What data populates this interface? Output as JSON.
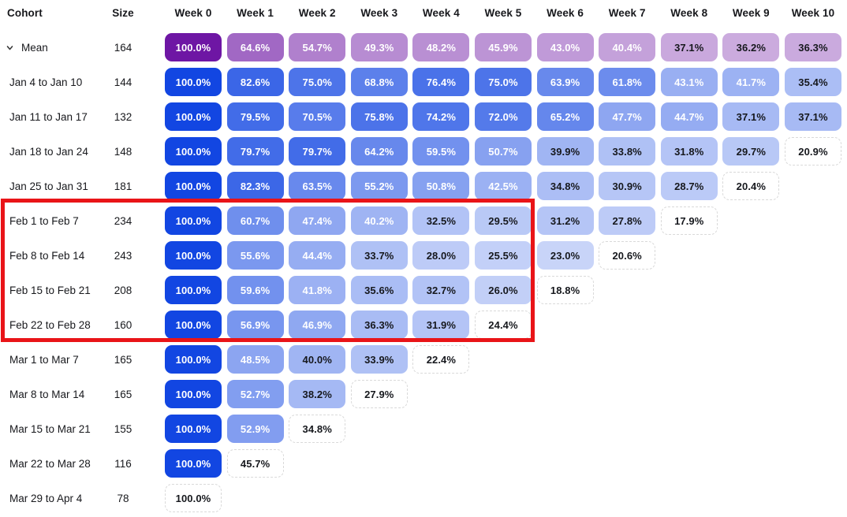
{
  "header": {
    "cohort": "Cohort",
    "size": "Size",
    "weeks": [
      "Week 0",
      "Week 1",
      "Week 2",
      "Week 3",
      "Week 4",
      "Week 5",
      "Week 6",
      "Week 7",
      "Week 8",
      "Week 9",
      "Week 10"
    ]
  },
  "colors": {
    "cohort_base": "#1246e2",
    "mean_base": "#6e16a4",
    "incomplete_border": "#d9d9d9",
    "dark_text": "#16181d",
    "light_text": "#ffffff",
    "highlight_red": "#e91418",
    "white_text_threshold": 40
  },
  "chart_data": {
    "type": "heatmap",
    "x_categories": [
      "Week 0",
      "Week 1",
      "Week 2",
      "Week 3",
      "Week 4",
      "Week 5",
      "Week 6",
      "Week 7",
      "Week 8",
      "Week 9",
      "Week 10"
    ],
    "value_format": "percent_1dp",
    "legend": "none",
    "rows": [
      {
        "cohort": "Mean",
        "size": "164",
        "series": "mean",
        "expandable": true,
        "incomplete_last": false,
        "values": [
          100.0,
          64.6,
          54.7,
          49.3,
          48.2,
          45.9,
          43.0,
          40.4,
          37.1,
          36.2,
          36.3
        ]
      },
      {
        "cohort": "Jan 4 to Jan 10",
        "size": "144",
        "series": "cohort",
        "incomplete_last": false,
        "values": [
          100.0,
          82.6,
          75.0,
          68.8,
          76.4,
          75.0,
          63.9,
          61.8,
          43.1,
          41.7,
          35.4
        ]
      },
      {
        "cohort": "Jan 11 to Jan 17",
        "size": "132",
        "series": "cohort",
        "incomplete_last": false,
        "values": [
          100.0,
          79.5,
          70.5,
          75.8,
          74.2,
          72.0,
          65.2,
          47.7,
          44.7,
          37.1,
          37.1
        ]
      },
      {
        "cohort": "Jan 18 to Jan 24",
        "size": "148",
        "series": "cohort",
        "incomplete_last": true,
        "values": [
          100.0,
          79.7,
          79.7,
          64.2,
          59.5,
          50.7,
          39.9,
          33.8,
          31.8,
          29.7,
          20.9
        ]
      },
      {
        "cohort": "Jan 25 to Jan 31",
        "size": "181",
        "series": "cohort",
        "incomplete_last": true,
        "values": [
          100.0,
          82.3,
          63.5,
          55.2,
          50.8,
          42.5,
          34.8,
          30.9,
          28.7,
          20.4
        ]
      },
      {
        "cohort": "Feb 1 to Feb 7",
        "size": "234",
        "series": "cohort",
        "incomplete_last": true,
        "values": [
          100.0,
          60.7,
          47.4,
          40.2,
          32.5,
          29.5,
          31.2,
          27.8,
          17.9
        ]
      },
      {
        "cohort": "Feb 8 to Feb 14",
        "size": "243",
        "series": "cohort",
        "incomplete_last": true,
        "values": [
          100.0,
          55.6,
          44.4,
          33.7,
          28.0,
          25.5,
          23.0,
          20.6
        ]
      },
      {
        "cohort": "Feb 15 to Feb 21",
        "size": "208",
        "series": "cohort",
        "incomplete_last": true,
        "values": [
          100.0,
          59.6,
          41.8,
          35.6,
          32.7,
          26.0,
          18.8
        ]
      },
      {
        "cohort": "Feb 22 to Feb 28",
        "size": "160",
        "series": "cohort",
        "incomplete_last": true,
        "values": [
          100.0,
          56.9,
          46.9,
          36.3,
          31.9,
          24.4
        ]
      },
      {
        "cohort": "Mar 1 to Mar 7",
        "size": "165",
        "series": "cohort",
        "incomplete_last": true,
        "values": [
          100.0,
          48.5,
          40.0,
          33.9,
          22.4
        ]
      },
      {
        "cohort": "Mar 8 to Mar 14",
        "size": "165",
        "series": "cohort",
        "incomplete_last": true,
        "values": [
          100.0,
          52.7,
          38.2,
          27.9
        ]
      },
      {
        "cohort": "Mar 15 to Mar 21",
        "size": "155",
        "series": "cohort",
        "incomplete_last": true,
        "values": [
          100.0,
          52.9,
          34.8
        ]
      },
      {
        "cohort": "Mar 22 to Mar 28",
        "size": "116",
        "series": "cohort",
        "incomplete_last": true,
        "values": [
          100.0,
          45.7
        ]
      },
      {
        "cohort": "Mar 29 to Apr 4",
        "size": "78",
        "series": "cohort",
        "incomplete_last": true,
        "values": [
          100.0
        ]
      }
    ]
  },
  "annotation": {
    "highlight_box": {
      "color": "#e91418",
      "cohorts_covered": [
        "Feb 1 to Feb 7",
        "Feb 8 to Feb 14",
        "Feb 15 to Feb 21",
        "Feb 22 to Feb 28"
      ],
      "weeks_covered": [
        "Week 0",
        "Week 5"
      ]
    }
  }
}
